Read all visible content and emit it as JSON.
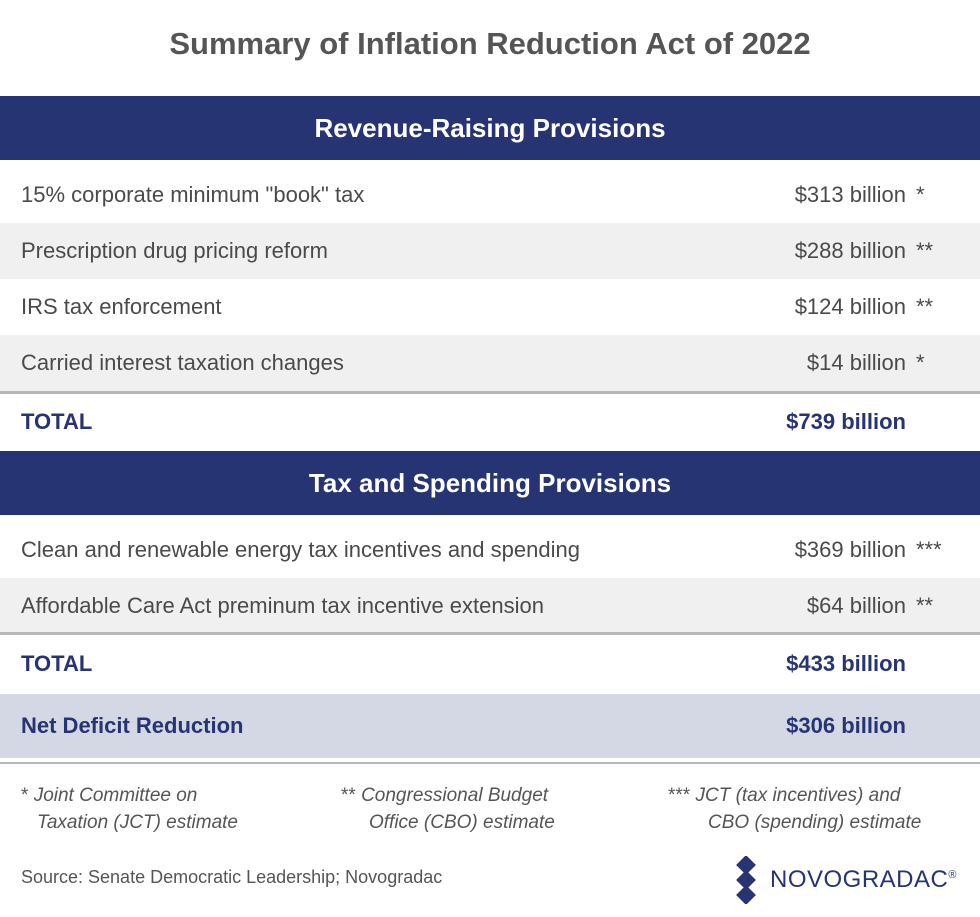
{
  "title": "Summary of Inflation Reduction Act of 2022",
  "revenue": {
    "header": "Revenue-Raising Provisions",
    "rows": [
      {
        "label": "15% corporate minimum \"book\" tax",
        "amount": "$313 billion",
        "note": "*"
      },
      {
        "label": "Prescription drug pricing reform",
        "amount": "$288 billion",
        "note": "**"
      },
      {
        "label": "IRS tax enforcement",
        "amount": "$124 billion",
        "note": "**"
      },
      {
        "label": "Carried interest taxation changes",
        "amount": "$14 billion",
        "note": "*"
      }
    ],
    "total_label": "TOTAL",
    "total_amount": "$739 billion"
  },
  "spending": {
    "header": "Tax and Spending Provisions",
    "rows": [
      {
        "label": "Clean and renewable energy tax incentives and spending",
        "amount": "$369 billion",
        "note": "***"
      },
      {
        "label": "Affordable Care Act preminum tax incentive extension",
        "amount": "$64 billion",
        "note": "**"
      }
    ],
    "total_label": "TOTAL",
    "total_amount": "$433 billion"
  },
  "net": {
    "label": "Net Deficit Reduction",
    "amount": "$306 billion"
  },
  "footnotes": [
    {
      "mark": "*",
      "line1": "Joint Committee on",
      "line2": "Taxation (JCT) estimate"
    },
    {
      "mark": "**",
      "line1": "Congressional Budget",
      "line2": "Office (CBO) estimate"
    },
    {
      "mark": "***",
      "line1": "JCT (tax incentives) and",
      "line2": "CBO (spending) estimate"
    }
  ],
  "source": "Source: Senate Democratic Leadership; Novogradac",
  "logo": {
    "text": "NOVOGRADAC",
    "mark": "®",
    "icon": "diamond-logo-icon"
  },
  "colors": {
    "navy": "#273474",
    "row_shade": "#f0f0f0",
    "net_band": "#d3d8e4"
  }
}
